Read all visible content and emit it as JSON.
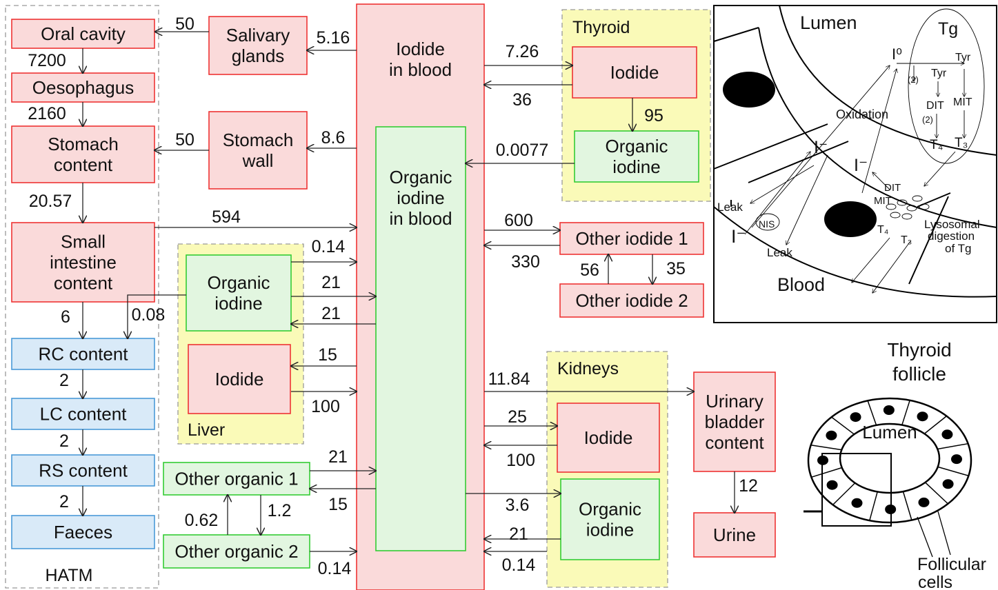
{
  "groups": [
    {
      "label": "HATM"
    },
    {
      "label": "Thyroid"
    },
    {
      "label": "Liver"
    },
    {
      "label": "Kidneys"
    }
  ],
  "nodes": [
    {
      "lines": [
        "Oral cavity"
      ]
    },
    {
      "lines": [
        "Oesophagus"
      ]
    },
    {
      "lines": [
        "Stomach",
        "content"
      ]
    },
    {
      "lines": [
        "Small",
        "intestine",
        "content"
      ]
    },
    {
      "lines": [
        "RC content"
      ]
    },
    {
      "lines": [
        "LC content"
      ]
    },
    {
      "lines": [
        "RS content"
      ]
    },
    {
      "lines": [
        "Faeces"
      ]
    },
    {
      "lines": [
        "Salivary",
        "glands"
      ]
    },
    {
      "lines": [
        "Stomach",
        "wall"
      ]
    },
    {
      "lines": [
        "Iodide",
        "in blood"
      ]
    },
    {
      "lines": [
        "Organic",
        "iodine",
        "in blood"
      ]
    },
    {
      "lines": [
        "Iodide"
      ]
    },
    {
      "lines": [
        "Organic",
        "iodine"
      ]
    },
    {
      "lines": [
        "Other iodide 1"
      ]
    },
    {
      "lines": [
        "Other iodide 2"
      ]
    },
    {
      "lines": [
        "Organic",
        "iodine"
      ]
    },
    {
      "lines": [
        "Iodide"
      ]
    },
    {
      "lines": [
        "Other organic 1"
      ]
    },
    {
      "lines": [
        "Other organic 2"
      ]
    },
    {
      "lines": [
        "Iodide"
      ]
    },
    {
      "lines": [
        "Organic",
        "iodine"
      ]
    },
    {
      "lines": [
        "Urinary",
        "bladder",
        "content"
      ]
    },
    {
      "lines": [
        "Urine"
      ]
    }
  ],
  "flows": [
    "50",
    "5.16",
    "7200",
    "2160",
    "50",
    "8.6",
    "20.57",
    "594",
    "0.14",
    "21",
    "21",
    "0.08",
    "6",
    "15",
    "100",
    "2",
    "2",
    "2",
    "21",
    "15",
    "0.62",
    "1.2",
    "0.14",
    "7.26",
    "36",
    "95",
    "0.0077",
    "600",
    "330",
    "56",
    "35",
    "11.84",
    "25",
    "100",
    "3.6",
    "21",
    "0.14",
    "12"
  ],
  "inset": {
    "labels": [
      "Lumen",
      "Tg",
      "I⁰",
      "Tyr",
      "(2)",
      "Tyr",
      "DIT",
      "MIT",
      "(2)",
      "T₄",
      "T₃",
      "Oxidation",
      "I⁻",
      "I⁻",
      "DIT",
      "MIT",
      "Leak",
      "NIS",
      "I⁻",
      "Leak",
      "T₄",
      "T₃",
      "Lysosomal",
      "digestion",
      "of Tg",
      "Blood"
    ]
  },
  "follicle": {
    "title": [
      "Thyroid",
      "follicle"
    ],
    "lumen": "Lumen",
    "cells": [
      "Follicular",
      "cells"
    ]
  }
}
